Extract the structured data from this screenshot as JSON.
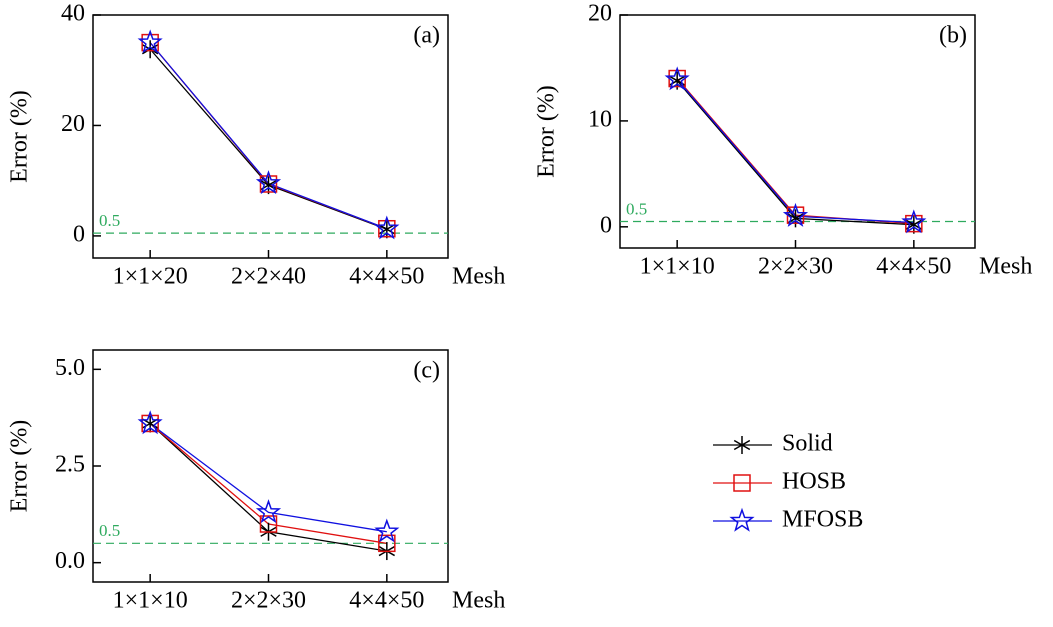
{
  "chart_data": [
    {
      "type": "line",
      "annotation": "(a)",
      "y_label": "Error (%)",
      "x_label": "Mesh",
      "categories": [
        "1×1×20",
        "2×2×40",
        "4×4×50"
      ],
      "ylim": [
        -4,
        40
      ],
      "yticks": [
        0,
        20,
        40
      ],
      "reference_line": 0.5,
      "series": [
        {
          "name": "Solid",
          "color": "#000000",
          "marker": "asterisk",
          "values": [
            33.8,
            9.2,
            1.2
          ]
        },
        {
          "name": "HOSB",
          "color": "#e01010",
          "marker": "square",
          "values": [
            35.0,
            9.4,
            1.3
          ]
        },
        {
          "name": "MFOSB",
          "color": "#1010e0",
          "marker": "star",
          "values": [
            35.0,
            9.5,
            1.3
          ]
        }
      ]
    },
    {
      "type": "line",
      "annotation": "(b)",
      "y_label": "Error (%)",
      "x_label": "Mesh",
      "categories": [
        "1×1×10",
        "2×2×30",
        "4×4×50"
      ],
      "ylim": [
        -2,
        20
      ],
      "yticks": [
        0,
        10,
        20
      ],
      "reference_line": 0.5,
      "series": [
        {
          "name": "Solid",
          "color": "#000000",
          "marker": "asterisk",
          "values": [
            13.8,
            0.8,
            0.2
          ]
        },
        {
          "name": "HOSB",
          "color": "#e01010",
          "marker": "square",
          "values": [
            14.0,
            1.1,
            0.3
          ]
        },
        {
          "name": "MFOSB",
          "color": "#1010e0",
          "marker": "star",
          "values": [
            13.9,
            1.0,
            0.4
          ]
        }
      ]
    },
    {
      "type": "line",
      "annotation": "(c)",
      "y_label": "Error (%)",
      "x_label": "Mesh",
      "categories": [
        "1×1×10",
        "2×2×30",
        "4×4×50"
      ],
      "ylim": [
        -0.5,
        5.5
      ],
      "yticks": [
        {
          "value": 0,
          "label": "0.0"
        },
        {
          "value": 2.5,
          "label": "2.5"
        },
        {
          "value": 5,
          "label": "5.0"
        }
      ],
      "reference_line": 0.5,
      "series": [
        {
          "name": "Solid",
          "color": "#000000",
          "marker": "asterisk",
          "values": [
            3.6,
            0.8,
            0.3
          ]
        },
        {
          "name": "HOSB",
          "color": "#e01010",
          "marker": "square",
          "values": [
            3.6,
            1.0,
            0.5
          ]
        },
        {
          "name": "MFOSB",
          "color": "#1010e0",
          "marker": "star",
          "values": [
            3.6,
            1.3,
            0.8
          ]
        }
      ]
    }
  ]
}
